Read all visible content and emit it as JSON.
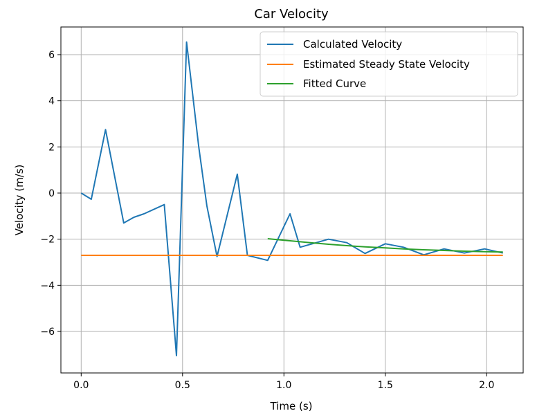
{
  "chart_data": {
    "type": "line",
    "title": "Car Velocity",
    "xlabel": "Time (s)",
    "ylabel": "Velocity (m/s)",
    "xlim": [
      -0.1,
      2.18
    ],
    "ylim": [
      -7.8,
      7.2
    ],
    "xticks": [
      0.0,
      0.5,
      1.0,
      1.5,
      2.0
    ],
    "xtick_labels": [
      "0.0",
      "0.5",
      "1.0",
      "1.5",
      "2.0"
    ],
    "yticks": [
      -6,
      -4,
      -2,
      0,
      2,
      4,
      6
    ],
    "ytick_labels": [
      "−6",
      "−4",
      "−2",
      "0",
      "2",
      "4",
      "6"
    ],
    "grid": true,
    "legend_position": "top-right",
    "series": [
      {
        "name": "Calculated Velocity",
        "color": "#1f77b4",
        "x": [
          0.0,
          0.05,
          0.12,
          0.21,
          0.26,
          0.31,
          0.41,
          0.47,
          0.52,
          0.58,
          0.62,
          0.67,
          0.77,
          0.82,
          0.92,
          1.03,
          1.08,
          1.22,
          1.31,
          1.4,
          1.5,
          1.59,
          1.69,
          1.79,
          1.89,
          1.99,
          2.08
        ],
        "y": [
          0.0,
          -0.27,
          2.75,
          -1.3,
          -1.05,
          -0.9,
          -0.5,
          -7.05,
          6.55,
          2.0,
          -0.55,
          -2.75,
          0.82,
          -2.7,
          -2.92,
          -0.9,
          -2.35,
          -2.0,
          -2.15,
          -2.62,
          -2.2,
          -2.35,
          -2.68,
          -2.42,
          -2.6,
          -2.42,
          -2.6
        ]
      },
      {
        "name": "Estimated Steady State Velocity",
        "color": "#ff7f0e",
        "x": [
          0.0,
          2.08
        ],
        "y": [
          -2.7,
          -2.7
        ]
      },
      {
        "name": "Fitted Curve",
        "color": "#2ca02c",
        "x": [
          0.92,
          1.03,
          1.13,
          1.22,
          1.31,
          1.4,
          1.5,
          1.59,
          1.69,
          1.79,
          1.89,
          1.99,
          2.08
        ],
        "y": [
          -1.98,
          -2.07,
          -2.15,
          -2.22,
          -2.28,
          -2.33,
          -2.38,
          -2.42,
          -2.46,
          -2.49,
          -2.52,
          -2.54,
          -2.56
        ]
      }
    ]
  }
}
